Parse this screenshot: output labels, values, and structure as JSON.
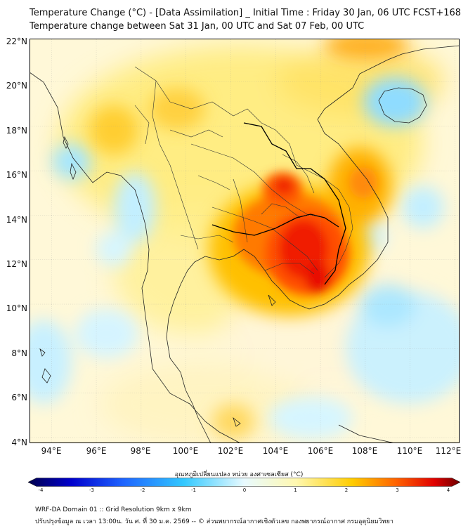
{
  "title_line1": "Temperature Change (°C) - [Data Assimilation] _ Initial Time : Friday 30 Jan, 06 UTC FCST+168",
  "title_line2": "Temperature change between Sat 31 Jan, 00 UTC and Sat 07 Feb, 00 UTC",
  "lat_labels": [
    "22°N",
    "20°N",
    "18°N",
    "16°N",
    "14°N",
    "12°N",
    "10°N",
    "8°N",
    "6°N",
    "4°N"
  ],
  "lon_labels": [
    "94°E",
    "96°E",
    "98°E",
    "100°E",
    "102°E",
    "104°E",
    "106°E",
    "108°E",
    "110°E",
    "112°E"
  ],
  "colorbar": {
    "title": "อุณหภูมิเปลี่ยนแปลง หน่วย องศาเซลเซียส (°C)",
    "ticks": [
      "-4",
      "-3",
      "-2",
      "-1",
      "0",
      "1",
      "2",
      "3",
      "4"
    ],
    "range": [
      -4,
      4
    ],
    "colors": [
      "#00004d",
      "#0000cc",
      "#1e64ff",
      "#32c8ff",
      "#e8faff",
      "#fff8b0",
      "#ffcc00",
      "#ff6400",
      "#e00000",
      "#6e0000"
    ]
  },
  "footer_line1": "WRF-DA Domain 01 :: Grid Resolution 9km x 9km",
  "footer_line2": "ปรับปรุงข้อมูล ณ เวลา 13:00น. วัน ศ. ที่ 30 ม.ค. 2569 -- © ส่วนพยากรณ์อากาศเชิงตัวเลข กองพยากรณ์อากาศ กรมอุตุนิยมวิทยา",
  "map": {
    "lon_range": [
      93,
      112.2
    ],
    "lat_range": [
      4,
      22.2
    ],
    "warm_core_max_c": 3.5,
    "cool_spot_min_c": -1.5
  }
}
